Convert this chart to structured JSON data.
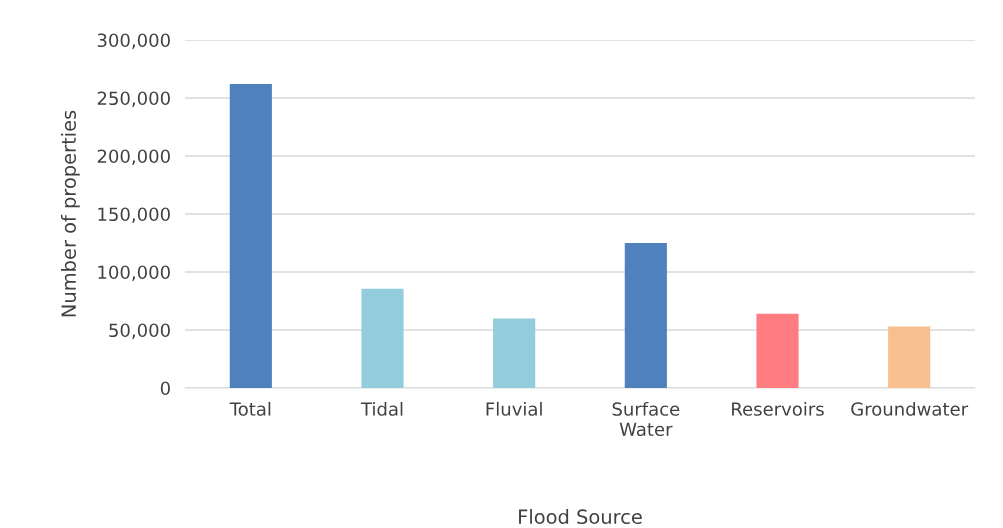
{
  "chart_data": {
    "type": "bar",
    "xlabel": "Flood Source",
    "ylabel": "Number of properties",
    "categories": [
      "Total",
      "Tidal",
      "Fluvial",
      "Surface\nWater",
      "Reservoirs",
      "Groundwater"
    ],
    "values": [
      262000,
      85500,
      60000,
      125000,
      64000,
      53000
    ],
    "colors": [
      "#4f81bd",
      "#93cddd",
      "#93cddd",
      "#4f81bd",
      "#ff7c80",
      "#f9c08f"
    ],
    "ylim": [
      0,
      300000
    ],
    "yticks": [
      {
        "value": 0,
        "label": "0"
      },
      {
        "value": 50000,
        "label": "50,000"
      },
      {
        "value": 100000,
        "label": "100,000"
      },
      {
        "value": 150000,
        "label": "150,000"
      },
      {
        "value": 200000,
        "label": "200,000"
      },
      {
        "value": 250000,
        "label": "250,000"
      },
      {
        "value": 300000,
        "label": "300,000"
      }
    ],
    "grid": "y"
  }
}
